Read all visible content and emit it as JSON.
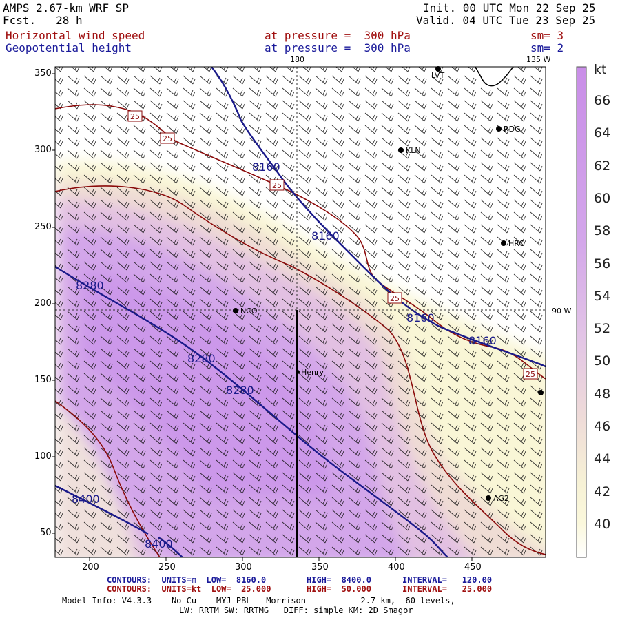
{
  "header": {
    "model": "AMPS 2.67-km WRF SP",
    "fcst": "Fcst.   28 h",
    "init": "Init. 00 UTC Mon 22 Sep 25",
    "valid": "Valid. 04 UTC Tue 23 Sep 25",
    "field1": "Horizontal wind speed",
    "field1_level": "at pressure =  300 hPa",
    "field1_sm": "sm= 3",
    "field2": "Geopotential height",
    "field2_level": "at pressure =  300 hPa",
    "field2_sm": "sm= 2"
  },
  "map": {
    "x_ticks": [
      "200",
      "250",
      "300",
      "350",
      "400",
      "450"
    ],
    "y_ticks": [
      "350",
      "300",
      "250",
      "200",
      "150",
      "100",
      "50"
    ],
    "gridline_labels": {
      "lon_180": "180",
      "lon_135w": "135 W",
      "lat_90w": "90 W"
    },
    "stations": [
      "LVT",
      "RDG",
      "KLN",
      "HRC",
      "NCO",
      "Henry",
      "AG2"
    ],
    "height_contour_labels": [
      "8160",
      "8160",
      "8160",
      "8160",
      "8280",
      "8280",
      "8280",
      "8400",
      "8400"
    ],
    "speed_contour_label": "25",
    "colors": {
      "height_contour": "#1a1a8a",
      "speed_contour": "#8b0a0a",
      "shade_max": "#c890e8",
      "shade_min": "#fbf7d6"
    }
  },
  "colorbar": {
    "unit": "kt",
    "labels": [
      "66",
      "64",
      "62",
      "60",
      "58",
      "56",
      "54",
      "52",
      "50",
      "48",
      "46",
      "44",
      "42",
      "40"
    ]
  },
  "footer": {
    "line1_key": "CONTOURS:  UNITS=m  LOW=  8160.0",
    "line1_high": "HIGH=  8400.0",
    "line1_int": "INTERVAL=   120.00",
    "line2_key": "CONTOURS:  UNITS=kt  LOW=  25.000",
    "line2_high": "HIGH=  50.000",
    "line2_int": "INTERVAL=   25.000",
    "line3": "Model Info: V4.3.3    No Cu    MYJ PBL   Morrison           2.7 km,  60 levels,",
    "line4": "LW: RRTM SW: RRTMG   DIFF: simple KM: 2D Smagor"
  }
}
